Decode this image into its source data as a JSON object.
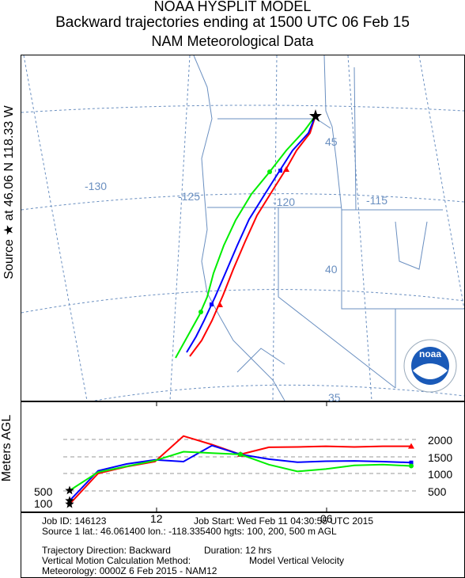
{
  "header": {
    "line1": "NOAA HYSPLIT MODEL",
    "line2": "Backward trajectories ending at 1500 UTC 06 Feb 15",
    "line3": "NAM Meteorological Data"
  },
  "source_label": "Source ★ at  46.06 N  118.33 W",
  "height_axis_label": "Meters AGL",
  "map_labels": {
    "lon_130": "-130",
    "lon_125": "-125",
    "lon_120": "-120",
    "lon_115": "-115",
    "lat_45": "45",
    "lat_40": "40",
    "lat_35": "35"
  },
  "colors": {
    "red": "#ff0000",
    "blue": "#0000ff",
    "green": "#00ee00",
    "map": "#6a8fc0",
    "noaa": "#1a5ab8"
  },
  "chart_data": {
    "type": "line",
    "title": "Backward trajectories ending at 1500 UTC 06 Feb 15",
    "x_ticks": [
      "12",
      "06"
    ],
    "y_ticks": [
      500,
      1000,
      1500,
      2000
    ],
    "start_height_labels": [
      "500",
      "100"
    ],
    "ylim": [
      0,
      2400
    ],
    "x_hours_back": [
      0,
      1,
      2,
      3,
      4,
      5,
      6,
      7,
      8,
      9,
      10,
      11,
      12
    ],
    "series": [
      {
        "name": "100 m",
        "color": "red",
        "marker": "triangle",
        "heights": [
          1800,
          1800,
          1780,
          1800,
          1780,
          1770,
          1560,
          1850,
          2100,
          1350,
          1200,
          1000,
          100
        ]
      },
      {
        "name": "200 m",
        "color": "blue",
        "marker": "square",
        "heights": [
          1320,
          1350,
          1370,
          1360,
          1330,
          1420,
          1560,
          1820,
          1350,
          1400,
          1280,
          1080,
          200
        ]
      },
      {
        "name": "500 m",
        "color": "green",
        "marker": "circle",
        "heights": [
          1220,
          1260,
          1240,
          1130,
          1060,
          1260,
          1560,
          1600,
          1640,
          1380,
          1210,
          1040,
          500
        ]
      }
    ]
  },
  "info": {
    "job_id": "Job ID: 146123",
    "job_start": "Job Start: Wed Feb 11 04:30:55 UTC 2015",
    "source1": "Source 1 lat.: 46.061400  lon.: -118.335400  hgts: 100, 200, 500 m AGL",
    "direction": "Trajectory Direction: Backward",
    "duration": "Duration: 12 hrs",
    "vertical": "Vertical Motion Calculation Method:",
    "vertical_val": "Model Vertical Velocity",
    "meteorology": "Meteorology: 0000Z  6 Feb 2015 - NAM12"
  },
  "noaa_logo": {
    "text": "noaa"
  }
}
